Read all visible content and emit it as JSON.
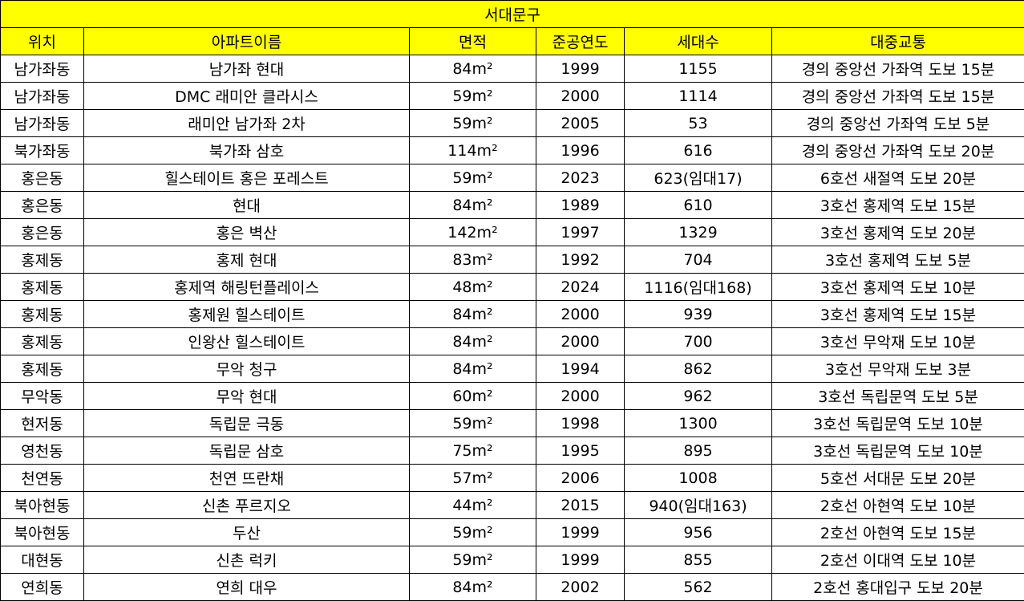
{
  "title": "서대문구",
  "headers": [
    "위치",
    "아파트이름",
    "면적",
    "준공연도",
    "세대수",
    "대중교통"
  ],
  "colors": {
    "header_bg": "#ffff00",
    "border": "#000000"
  },
  "rows": [
    [
      "남가좌동",
      "남가좌 현대",
      "84m²",
      "1999",
      "1155",
      "경의 중앙선 가좌역 도보 15분"
    ],
    [
      "남가좌동",
      "DMC 래미안 클라시스",
      "59m²",
      "2000",
      "1114",
      "경의 중앙선 가좌역 도보 15분"
    ],
    [
      "남가좌동",
      "래미안 남가좌 2차",
      "59m²",
      "2005",
      "53",
      "경의 중앙선 가좌역 도보 5분"
    ],
    [
      "북가좌동",
      "북가좌 삼호",
      "114m²",
      "1996",
      "616",
      "경의 중앙선 가좌역 도보 20분"
    ],
    [
      "홍은동",
      "힐스테이트 홍은 포레스트",
      "59m²",
      "2023",
      "623(임대17)",
      "6호선 새절역 도보 20분"
    ],
    [
      "홍은동",
      "현대",
      "84m²",
      "1989",
      "610",
      "3호선 홍제역 도보 15분"
    ],
    [
      "홍은동",
      "홍은 벽산",
      "142m²",
      "1997",
      "1329",
      "3호선 홍제역 도보 20분"
    ],
    [
      "홍제동",
      "홍제 현대",
      "83m²",
      "1992",
      "704",
      "3호선 홍제역 도보 5분"
    ],
    [
      "홍제동",
      "홍제역 해링턴플레이스",
      "48m²",
      "2024",
      "1116(임대168)",
      "3호선 홍제역 도보 10분"
    ],
    [
      "홍제동",
      "홍제원 힐스테이트",
      "84m²",
      "2000",
      "939",
      "3호선 홍제역 도보 15분"
    ],
    [
      "홍제동",
      "인왕산 힐스테이트",
      "84m²",
      "2000",
      "700",
      "3호선 무악재 도보 10분"
    ],
    [
      "홍제동",
      "무악 청구",
      "84m²",
      "1994",
      "862",
      "3호선 무악재 도보 3분"
    ],
    [
      "무악동",
      "무악 현대",
      "60m²",
      "2000",
      "962",
      "3호선 독립문역 도보 5분"
    ],
    [
      "현저동",
      "독립문 극동",
      "59m²",
      "1998",
      "1300",
      "3호선 독립문역 도보 10분"
    ],
    [
      "영천동",
      "독립문 삼호",
      "75m²",
      "1995",
      "895",
      "3호선 독립문역 도보 10분"
    ],
    [
      "천연동",
      "천연 뜨란채",
      "57m²",
      "2006",
      "1008",
      "5호선 서대문 도보 20분"
    ],
    [
      "북아현동",
      "신촌 푸르지오",
      "44m²",
      "2015",
      "940(임대163)",
      "2호선 아현역 도보 10분"
    ],
    [
      "북아현동",
      "두산",
      "59m²",
      "1999",
      "956",
      "2호선 아현역 도보 15분"
    ],
    [
      "대현동",
      "신촌 럭키",
      "59m²",
      "1999",
      "855",
      "2호선 이대역 도보 10분"
    ],
    [
      "연희동",
      "연희 대우",
      "84m²",
      "2002",
      "562",
      "2호선 홍대입구 도보 20분"
    ]
  ]
}
